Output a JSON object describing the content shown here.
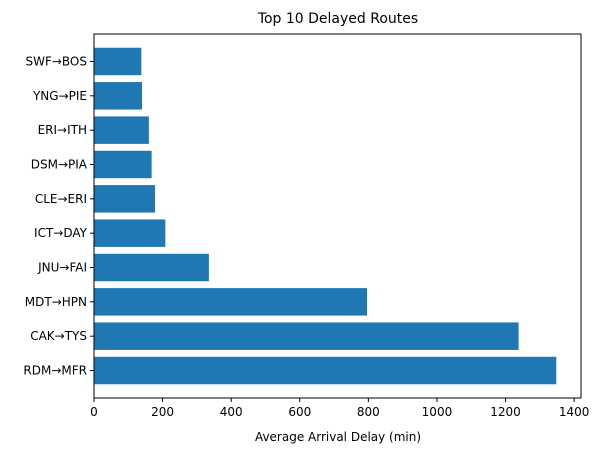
{
  "chart_data": {
    "type": "bar",
    "orientation": "horizontal",
    "title": "Top 10 Delayed Routes",
    "xlabel": "Average Arrival Delay (min)",
    "ylabel": "",
    "categories": [
      "RDM→MFR",
      "CAK→TYS",
      "MDT→HPN",
      "JNU→FAI",
      "ICT→DAY",
      "CLE→ERI",
      "DSM→PIA",
      "ERI→ITH",
      "YNG→PIE",
      "SWF→BOS"
    ],
    "values": [
      1348,
      1238,
      796,
      335,
      208,
      178,
      168,
      160,
      140,
      138
    ],
    "xlim": [
      0,
      1420
    ],
    "xticks": [
      0,
      200,
      400,
      600,
      800,
      1000,
      1200,
      1400
    ],
    "grid": false,
    "legend": "none",
    "colors": {
      "bar": "#1f77b4",
      "axis": "#000000",
      "background": "#ffffff"
    }
  }
}
